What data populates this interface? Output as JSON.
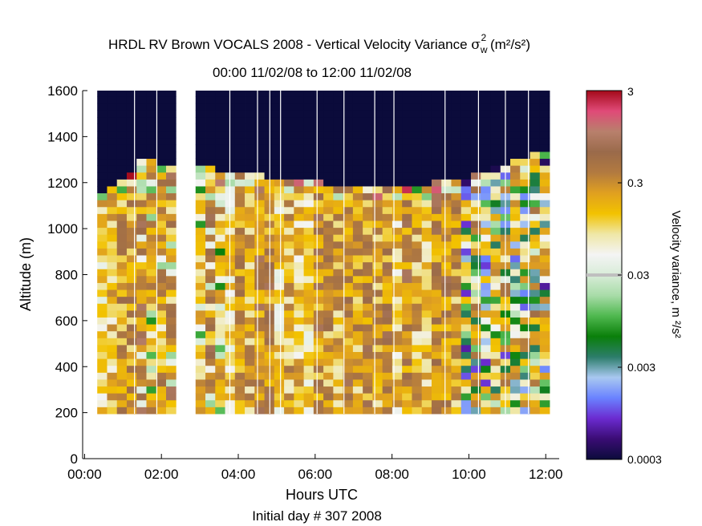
{
  "chart_data": {
    "type": "heatmap",
    "title": {
      "prefix": "HRDL RV Brown VOCALS 2008 - Vertical Velocity Variance ",
      "symbol": "σ",
      "symbol_sub": "w",
      "symbol_sup": "2",
      "units": " (m²/s²)"
    },
    "subtitle": "00:00 11/02/08 to 12:00 11/02/08",
    "xlabel": "Hours UTC",
    "xlabel2": "Initial day # 307  2008",
    "ylabel": "Altitude (m)",
    "xlim": [
      -0.05,
      12.35
    ],
    "ylim": [
      0,
      1600
    ],
    "x_ticks": [
      0,
      2,
      4,
      6,
      8,
      10,
      12
    ],
    "x_tick_labels": [
      "00:00",
      "02:00",
      "04:00",
      "06:00",
      "08:00",
      "10:00",
      "12:00"
    ],
    "y_ticks": [
      0,
      200,
      400,
      600,
      800,
      1000,
      1200,
      1400,
      1600
    ],
    "y_tick_labels": [
      "0",
      "200",
      "400",
      "600",
      "800",
      "1000",
      "1200",
      "1400",
      "1600"
    ],
    "colorbar": {
      "label": "Velocity variance, m ²/s²",
      "scale": "log",
      "range": [
        0.0003,
        3
      ],
      "ticks": [
        0.0003,
        0.003,
        0.03,
        0.3,
        3
      ],
      "tick_labels": [
        "0.0003",
        "0.003",
        "0.03",
        "0.3",
        "3"
      ],
      "colors": [
        "#0b0b3b",
        "#3a0c74",
        "#6b2bd0",
        "#6a82ff",
        "#a8c8f0",
        "#2c7d6a",
        "#0a7f0a",
        "#4fb84f",
        "#a8dca8",
        "#d8ecd8",
        "#f4f4f4",
        "#efe7a6",
        "#f2c200",
        "#e0a020",
        "#b27a40",
        "#9a6a4a",
        "#b8806c",
        "#e04a78",
        "#a40a1a"
      ]
    },
    "time_range_hours": [
      0.33,
      12.1
    ],
    "altitude_range_m": [
      195,
      1600
    ],
    "mixed_layer_top_m": [
      1130,
      1280,
      1265,
      1230,
      1210,
      1185,
      1160,
      1175,
      1200,
      1270,
      1340
    ],
    "missing_data_hours": [
      2.5,
      2.83
    ],
    "median_variance": 0.18
  }
}
